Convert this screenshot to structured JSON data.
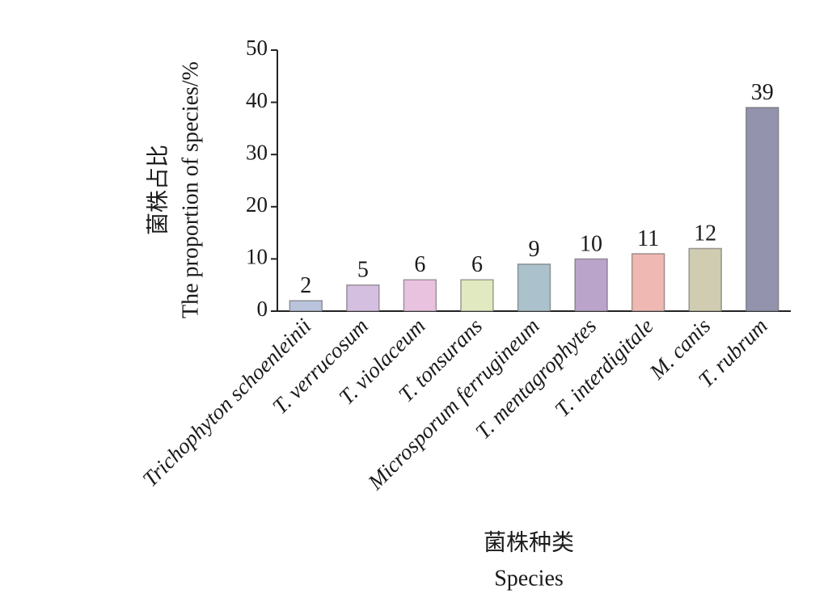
{
  "chart_data": {
    "type": "bar",
    "ylabel_cn": "菌株占比",
    "ylabel": "The proportion of species/%",
    "xlabel_cn": "菌株种类",
    "xlabel": "Species",
    "categories": [
      "Trichophyton schoenleinii",
      "T. verrucosum",
      "T. violaceum",
      "T. tonsurans",
      "Microsporum ferrugineum",
      "T. mentagrophytes",
      "T. interdigitale",
      "M. canis",
      "T. rubrum"
    ],
    "values": [
      2,
      5,
      6,
      6,
      9,
      10,
      11,
      12,
      39
    ],
    "colors": [
      "#b9c4dc",
      "#d5bfe0",
      "#e9c2df",
      "#e0e9bf",
      "#abc1cb",
      "#baa4ca",
      "#efb8b2",
      "#d0ccb1",
      "#9393ae"
    ],
    "ylim": [
      0,
      50
    ],
    "yticks": [
      0,
      10,
      20,
      30,
      40,
      50
    ]
  }
}
